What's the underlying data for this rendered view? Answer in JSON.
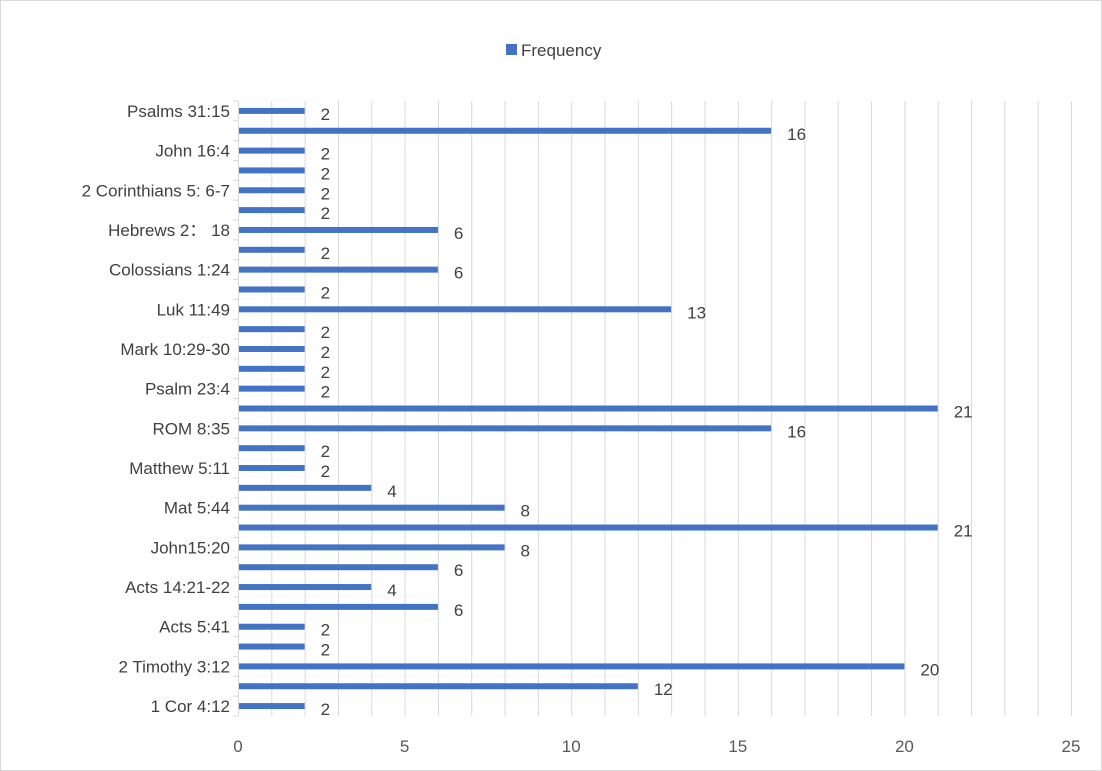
{
  "chart_data": {
    "type": "bar",
    "orientation": "horizontal",
    "title": "",
    "xlabel": "",
    "ylabel": "",
    "xlim": [
      0,
      25
    ],
    "x_ticks": [
      0,
      5,
      10,
      15,
      20,
      25
    ],
    "grid": "vertical minor",
    "legend_position": "top",
    "bar_color": "#4472c4",
    "series": [
      {
        "name": "Frequency",
        "values": [
          2,
          16,
          2,
          2,
          2,
          2,
          6,
          2,
          6,
          2,
          13,
          2,
          2,
          2,
          2,
          21,
          16,
          2,
          2,
          4,
          8,
          21,
          8,
          6,
          4,
          6,
          2,
          2,
          20,
          12,
          2
        ]
      }
    ],
    "category_labels": [
      {
        "row": 0,
        "text": "Psalms 31:15"
      },
      {
        "row": 2,
        "text": "John 16:4"
      },
      {
        "row": 4,
        "text": "2 Corinthians 5: 6-7"
      },
      {
        "row": 6,
        "text": "Hebrews 2： 18"
      },
      {
        "row": 8,
        "text": "Colossians 1:24"
      },
      {
        "row": 10,
        "text": "Luk 11:49"
      },
      {
        "row": 12,
        "text": "Mark 10:29-30"
      },
      {
        "row": 14,
        "text": "Psalm 23:4"
      },
      {
        "row": 16,
        "text": "ROM 8:35"
      },
      {
        "row": 18,
        "text": "Matthew 5:11"
      },
      {
        "row": 20,
        "text": "Mat 5:44"
      },
      {
        "row": 22,
        "text": "John15:20"
      },
      {
        "row": 24,
        "text": "Acts 14:21-22"
      },
      {
        "row": 26,
        "text": "Acts 5:41"
      },
      {
        "row": 28,
        "text": "2 Timothy 3:12"
      },
      {
        "row": 30,
        "text": "1 Cor 4:12"
      }
    ]
  }
}
